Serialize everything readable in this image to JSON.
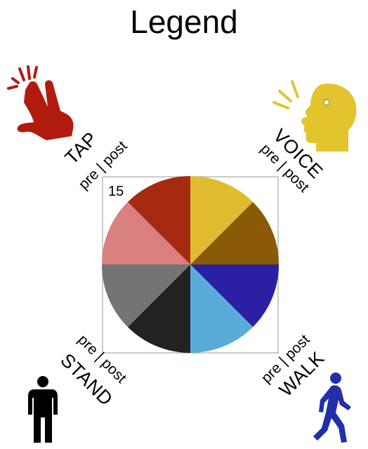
{
  "title": "Legend",
  "scale_value": "15",
  "subdivision": {
    "pre": "pre",
    "separator": "|",
    "post": "post"
  },
  "categories": [
    {
      "key": "tap",
      "label": "TAP",
      "pre_color": "#D98080",
      "post_color": "#A52A10",
      "icon": "tap-hand-icon"
    },
    {
      "key": "voice",
      "label": "VOICE",
      "pre_color": "#E2BC30",
      "post_color": "#8A5A06",
      "icon": "speaking-head-icon"
    },
    {
      "key": "walk",
      "label": "WALK",
      "pre_color": "#2B1FA3",
      "post_color": "#5AACD8",
      "icon": "walking-person-icon"
    },
    {
      "key": "stand",
      "label": "STAND",
      "pre_color": "#222222",
      "post_color": "#747474",
      "icon": "standing-person-icon"
    }
  ],
  "colors": {
    "box_border": "#a8a8a8",
    "tap_icon": "#B01B0E",
    "voice_icon": "#E3C42E",
    "walk_icon": "#2130A8",
    "stand_icon": "#000000"
  }
}
